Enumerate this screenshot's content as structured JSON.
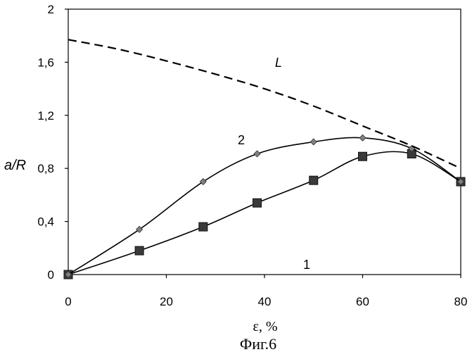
{
  "chart_data": {
    "type": "line",
    "title": "",
    "caption": "Фиг.6",
    "xlabel": "ε, %",
    "ylabel": "a/R",
    "xlim": [
      0,
      80
    ],
    "ylim": [
      0,
      2
    ],
    "xticks": [
      0,
      20,
      40,
      60,
      80
    ],
    "yticks": [
      0,
      0.4,
      0.8,
      1.2,
      1.6,
      2
    ],
    "ytick_labels": [
      "0",
      "0,4",
      "0,8",
      "1,2",
      "1,6",
      "2"
    ],
    "xtick_labels": [
      "0",
      "20",
      "40",
      "60",
      "80"
    ],
    "grid": false,
    "series": [
      {
        "name": "1",
        "marker": "square",
        "x": [
          0,
          14.5,
          27.5,
          38.5,
          50,
          60,
          70,
          80
        ],
        "y": [
          0,
          0.18,
          0.36,
          0.54,
          0.71,
          0.89,
          0.91,
          0.7
        ]
      },
      {
        "name": "2",
        "marker": "diamond",
        "x": [
          0,
          14.5,
          27.5,
          38.5,
          50,
          60,
          70,
          80
        ],
        "y": [
          0,
          0.34,
          0.7,
          0.91,
          1.0,
          1.03,
          0.95,
          0.7
        ]
      },
      {
        "name": "L",
        "marker": "none",
        "line_style": "dashed",
        "x": [
          0,
          10,
          20,
          30,
          40,
          50,
          60,
          70,
          80
        ],
        "y": [
          1.77,
          1.7,
          1.61,
          1.51,
          1.4,
          1.27,
          1.12,
          0.97,
          0.8
        ]
      }
    ]
  }
}
